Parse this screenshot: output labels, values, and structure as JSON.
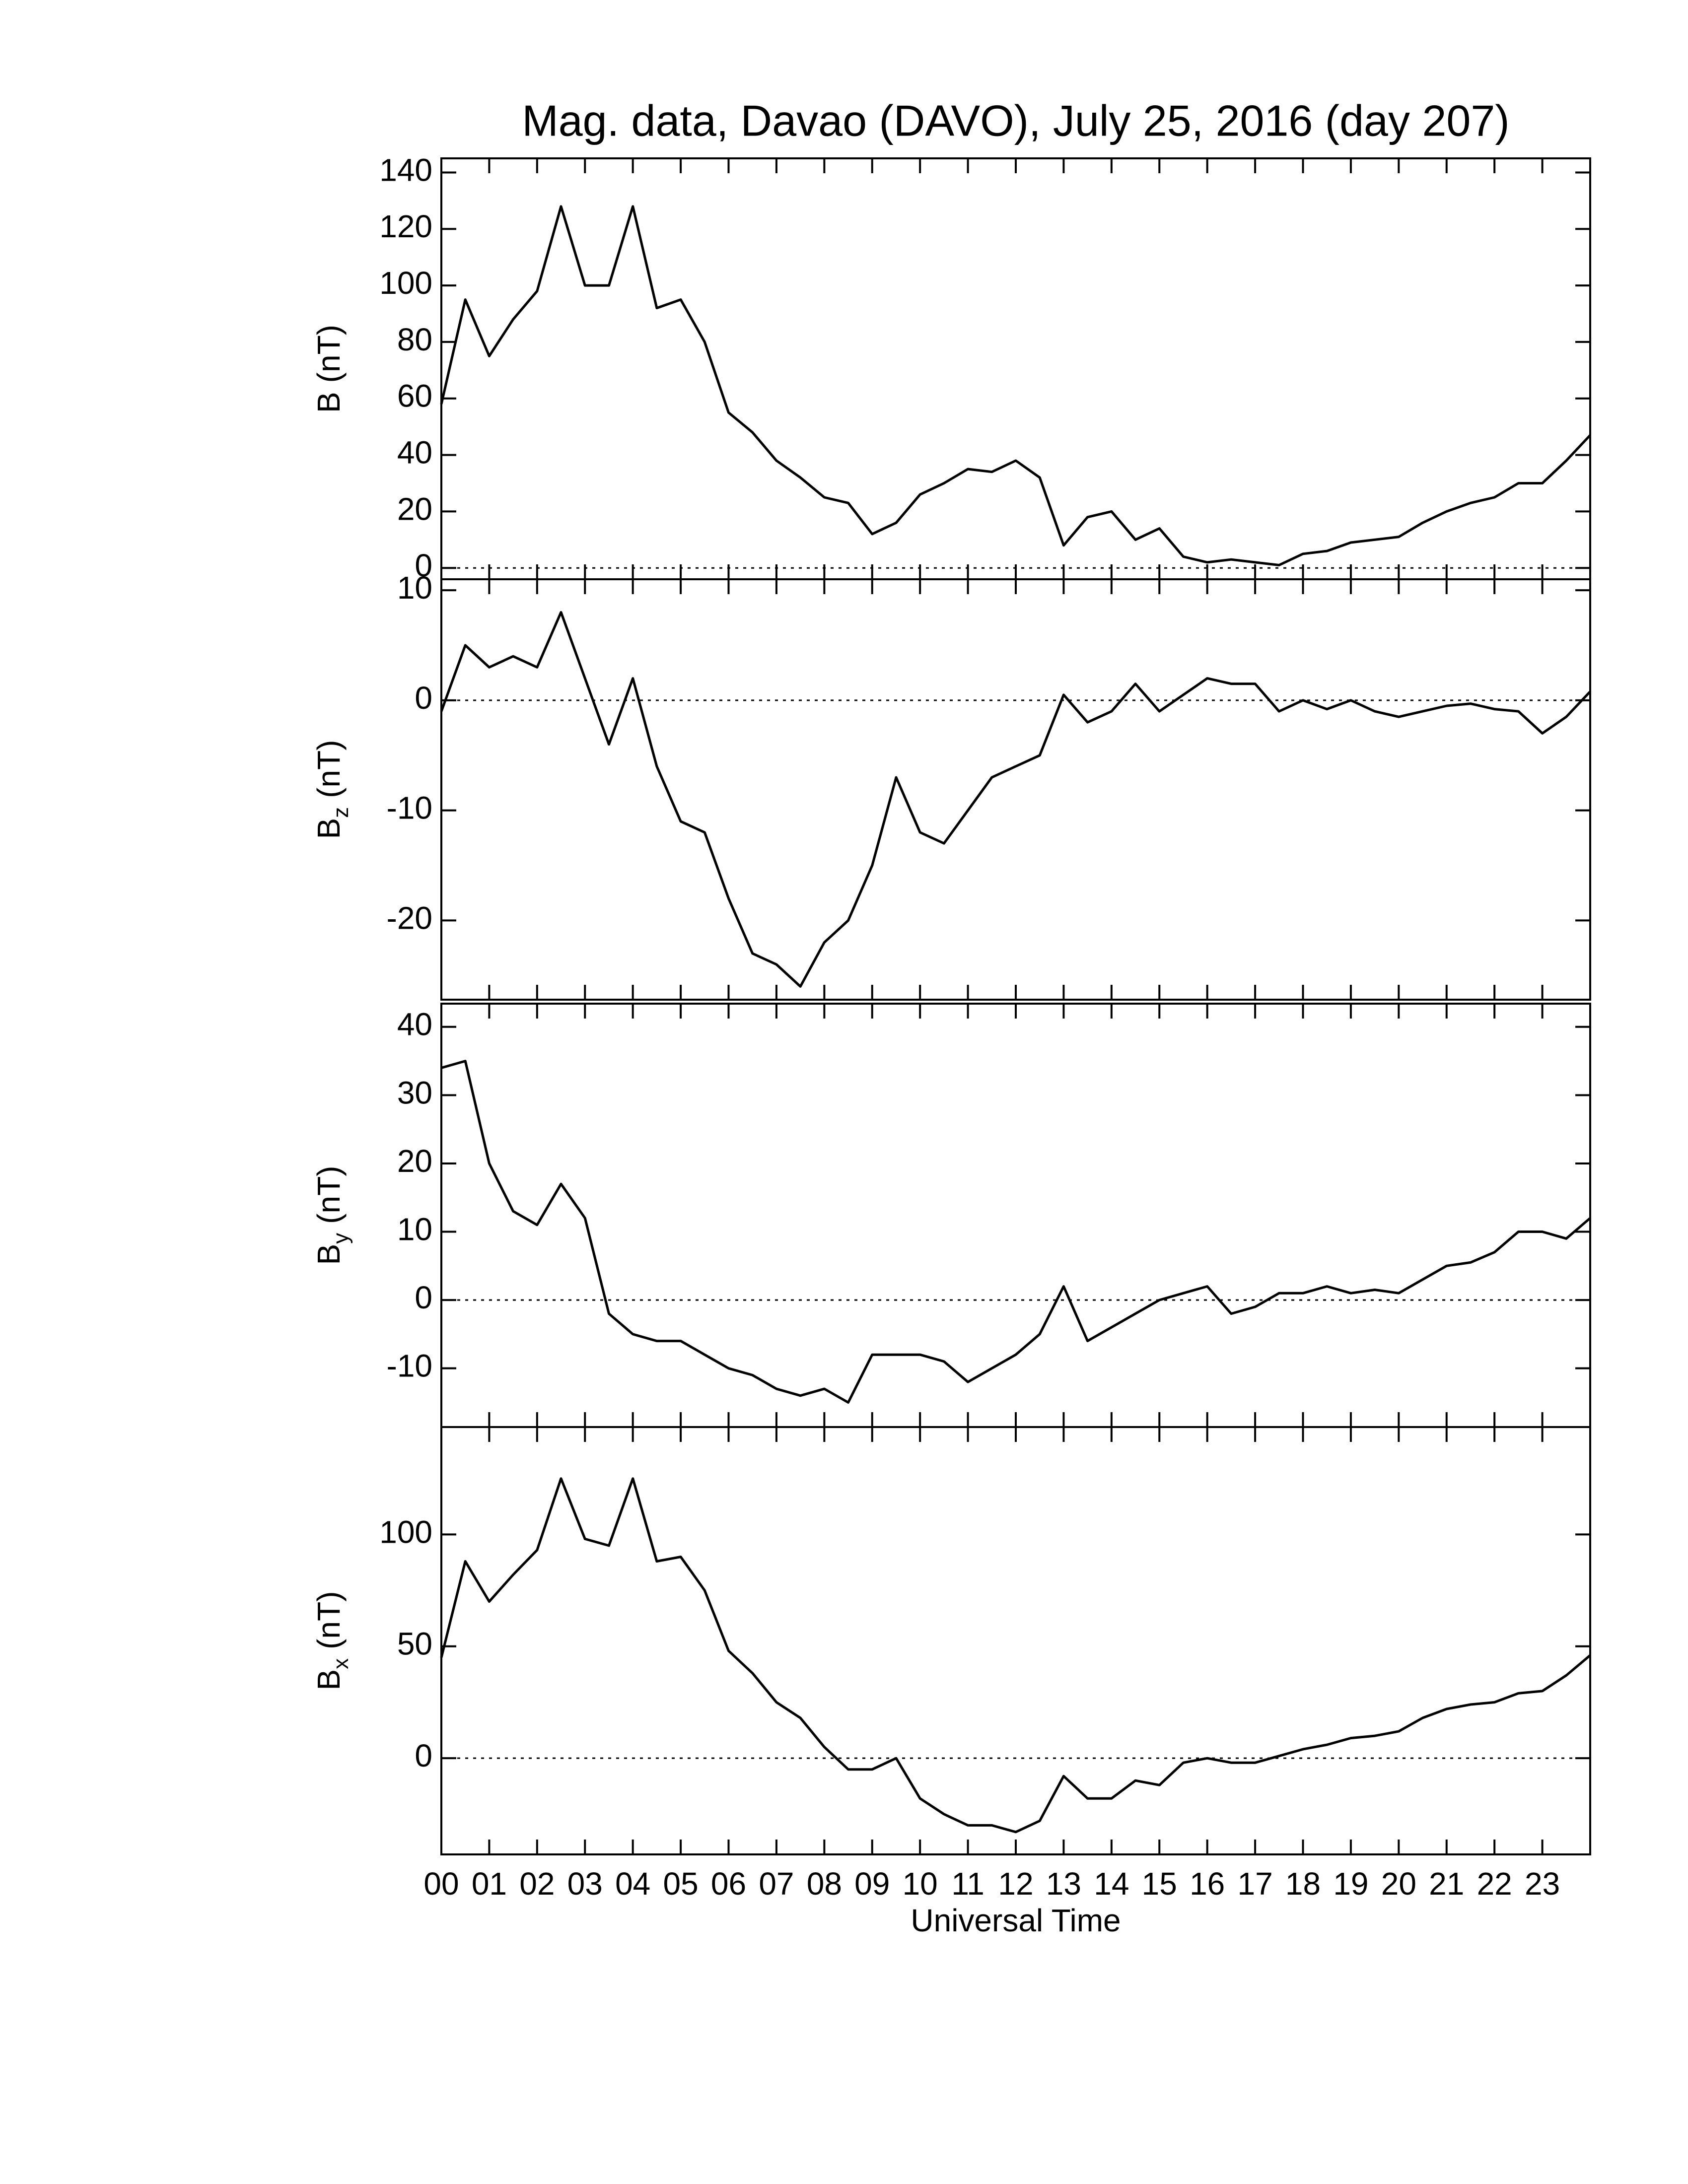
{
  "title": "Mag. data, Davao (DAVO), July 25, 2016 (day 207)",
  "chart_data": [
    {
      "type": "line",
      "ylabel_main": "B",
      "ylabel_unit": "(nT)",
      "color": "#000000",
      "zero_line": true,
      "xlim": [
        0,
        24
      ],
      "ylim": [
        -4,
        145
      ],
      "yticks": [
        0,
        20,
        40,
        60,
        80,
        100,
        120,
        140
      ],
      "x": [
        0,
        0.5,
        1,
        1.5,
        2,
        2.5,
        3,
        3.5,
        4,
        4.5,
        5,
        5.5,
        6,
        6.5,
        7,
        7.5,
        8,
        8.5,
        9,
        9.5,
        10,
        10.5,
        11,
        11.5,
        12,
        12.5,
        13,
        13.5,
        14,
        14.5,
        15,
        15.5,
        16,
        16.5,
        17,
        17.5,
        18,
        18.5,
        19,
        19.5,
        20,
        20.5,
        21,
        21.5,
        22,
        22.5,
        23,
        23.5,
        24
      ],
      "values": [
        58,
        95,
        75,
        88,
        98,
        128,
        100,
        100,
        128,
        92,
        95,
        80,
        55,
        48,
        38,
        32,
        25,
        23,
        12,
        16,
        26,
        30,
        35,
        34,
        38,
        32,
        8,
        18,
        20,
        10,
        14,
        4,
        2,
        3,
        2,
        1,
        5,
        6,
        9,
        10,
        11,
        16,
        20,
        23,
        25,
        30,
        30,
        38,
        47
      ]
    },
    {
      "type": "line",
      "ylabel_main": "B",
      "ylabel_sub": "z",
      "ylabel_unit": "(nT)",
      "color": "#000000",
      "zero_line": true,
      "xlim": [
        0,
        24
      ],
      "ylim": [
        -27.2,
        11
      ],
      "yticks": [
        -20,
        -10,
        0,
        10
      ],
      "x": [
        0,
        0.5,
        1,
        1.5,
        2,
        2.5,
        3,
        3.5,
        4,
        4.5,
        5,
        5.5,
        6,
        6.5,
        7,
        7.5,
        8,
        8.5,
        9,
        9.5,
        10,
        10.5,
        11,
        11.5,
        12,
        12.5,
        13,
        13.5,
        14,
        14.5,
        15,
        15.5,
        16,
        16.5,
        17,
        17.5,
        18,
        18.5,
        19,
        19.5,
        20,
        20.5,
        21,
        21.5,
        22,
        22.5,
        23,
        23.5,
        24
      ],
      "values": [
        -1,
        5,
        3,
        4,
        3,
        8,
        2,
        -4,
        2,
        -6,
        -11,
        -12,
        -18,
        -23,
        -24,
        -26,
        -22,
        -20,
        -15,
        -7,
        -12,
        -13,
        -10,
        -7,
        -6,
        -5,
        0.5,
        -2,
        -1,
        1.5,
        -1,
        0.5,
        2,
        1.5,
        1.5,
        -1,
        0,
        -0.8,
        0,
        -1,
        -1.5,
        -1,
        -0.5,
        -0.3,
        -0.8,
        -1,
        -3,
        -1.5,
        0.8
      ]
    },
    {
      "type": "line",
      "ylabel_main": "B",
      "ylabel_sub": "y",
      "ylabel_unit": "(nT)",
      "color": "#000000",
      "zero_line": true,
      "xlim": [
        0,
        24
      ],
      "ylim": [
        -18.6,
        43.4
      ],
      "yticks": [
        -10,
        0,
        10,
        20,
        30,
        40
      ],
      "x": [
        0,
        0.5,
        1,
        1.5,
        2,
        2.5,
        3,
        3.5,
        4,
        4.5,
        5,
        5.5,
        6,
        6.5,
        7,
        7.5,
        8,
        8.5,
        9,
        9.5,
        10,
        10.5,
        11,
        11.5,
        12,
        12.5,
        13,
        13.5,
        14,
        14.5,
        15,
        15.5,
        16,
        16.5,
        17,
        17.5,
        18,
        18.5,
        19,
        19.5,
        20,
        20.5,
        21,
        21.5,
        22,
        22.5,
        23,
        23.5,
        24
      ],
      "values": [
        34,
        35,
        20,
        13,
        11,
        17,
        12,
        -2,
        -5,
        -6,
        -6,
        -8,
        -10,
        -11,
        -13,
        -14,
        -13,
        -15,
        -8,
        -8,
        -8,
        -9,
        -12,
        -10,
        -8,
        -5,
        2,
        -6,
        -4,
        -2,
        0,
        1,
        2,
        -2,
        -1,
        1,
        1,
        2,
        1,
        1.5,
        1,
        3,
        5,
        5.5,
        7,
        10,
        10,
        9,
        12
      ]
    },
    {
      "type": "line",
      "ylabel_main": "B",
      "ylabel_sub": "x",
      "ylabel_unit": "(nT)",
      "color": "#000000",
      "zero_line": true,
      "xlabel": "Universal Time",
      "xlim": [
        0,
        24
      ],
      "ylim": [
        -43,
        148
      ],
      "yticks": [
        0,
        50,
        100
      ],
      "xticks": [
        {
          "value": 0,
          "label": "00"
        },
        {
          "value": 1,
          "label": "01"
        },
        {
          "value": 2,
          "label": "02"
        },
        {
          "value": 3,
          "label": "03"
        },
        {
          "value": 4,
          "label": "04"
        },
        {
          "value": 5,
          "label": "05"
        },
        {
          "value": 6,
          "label": "06"
        },
        {
          "value": 7,
          "label": "07"
        },
        {
          "value": 8,
          "label": "08"
        },
        {
          "value": 9,
          "label": "09"
        },
        10,
        11,
        12,
        13,
        14,
        15,
        16,
        17,
        18,
        19,
        20,
        21,
        22,
        23
      ],
      "x": [
        0,
        0.5,
        1,
        1.5,
        2,
        2.5,
        3,
        3.5,
        4,
        4.5,
        5,
        5.5,
        6,
        6.5,
        7,
        7.5,
        8,
        8.5,
        9,
        9.5,
        10,
        10.5,
        11,
        11.5,
        12,
        12.5,
        13,
        13.5,
        14,
        14.5,
        15,
        15.5,
        16,
        16.5,
        17,
        17.5,
        18,
        18.5,
        19,
        19.5,
        20,
        20.5,
        21,
        21.5,
        22,
        22.5,
        23,
        23.5,
        24
      ],
      "values": [
        45,
        88,
        70,
        82,
        93,
        125,
        98,
        95,
        125,
        88,
        90,
        75,
        48,
        38,
        25,
        18,
        5,
        -5,
        -5,
        0,
        -18,
        -25,
        -30,
        -30,
        -33,
        -28,
        -8,
        -18,
        -18,
        -10,
        -12,
        -2,
        0,
        -2,
        -2,
        1,
        4,
        6,
        9,
        10,
        12,
        18,
        22,
        24,
        25,
        29,
        30,
        37,
        46
      ]
    }
  ]
}
